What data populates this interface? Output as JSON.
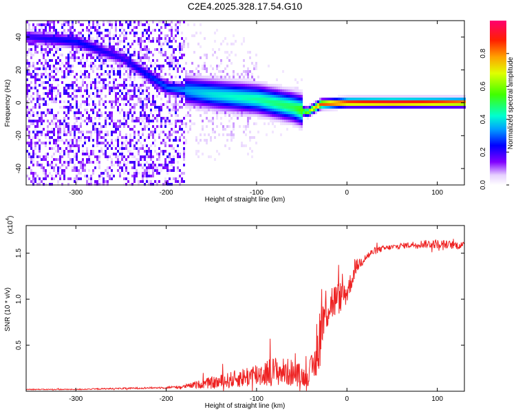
{
  "title": "C2E4.2025.328.17.54.G10",
  "chart_data": [
    {
      "type": "heatmap",
      "xlabel": "Height of straight line (km)",
      "ylabel": "Frequency (Hz)",
      "xlim": [
        -355,
        130
      ],
      "ylim": [
        -50,
        50
      ],
      "x_ticks": [
        -300,
        -200,
        -100,
        0,
        100
      ],
      "x_tick_labels": [
        "-300",
        "-200",
        "-100",
        "0",
        "100"
      ],
      "y_ticks": [
        -40,
        -20,
        0,
        20,
        40
      ],
      "y_tick_labels": [
        "-40",
        "-20",
        "0",
        "20",
        "40"
      ],
      "colorbar": {
        "label": "Normalized spectral amplitude",
        "range": [
          0,
          1
        ],
        "ticks": [
          0,
          0.2,
          0.4,
          0.6,
          0.8
        ],
        "tick_labels": [
          "0.0",
          "0.2",
          "0.4",
          "0.6",
          "0.8"
        ]
      },
      "ridge": {
        "description_points_x": [
          -355,
          -300,
          -250,
          -200,
          -150,
          -100,
          -60,
          -45,
          -30,
          0,
          50,
          100,
          130
        ],
        "center_freq": [
          41,
          38,
          28,
          10,
          6,
          3,
          -2,
          -5,
          0,
          1,
          1,
          1,
          1
        ],
        "peak_amplitude": [
          0.2,
          0.25,
          0.2,
          0.3,
          0.4,
          0.45,
          0.5,
          0.6,
          0.85,
          0.9,
          0.95,
          0.9,
          0.85
        ]
      },
      "grid": false
    },
    {
      "type": "line",
      "xlabel": "Height of straight line (km)",
      "ylabel": "SNR (10 * v/v)",
      "y_scale_note": "(x10",
      "y_scale_exp": "4",
      "xlim": [
        -355,
        130
      ],
      "ylim": [
        0,
        1.8
      ],
      "x_ticks": [
        -300,
        -200,
        -100,
        0,
        100
      ],
      "x_tick_labels": [
        "-300",
        "-200",
        "-100",
        "0",
        "100"
      ],
      "y_ticks": [
        0.5,
        1.0,
        1.5
      ],
      "y_tick_labels": [
        "0.5",
        "1.0",
        "1.5"
      ],
      "series": [
        {
          "color": "#ee2222",
          "x": [
            -355,
            -300,
            -250,
            -200,
            -180,
            -160,
            -140,
            -120,
            -100,
            -80,
            -60,
            -45,
            -35,
            -30,
            -25,
            -20,
            -10,
            0,
            5,
            10,
            20,
            30,
            40,
            60,
            80,
            100,
            130
          ],
          "y": [
            0.02,
            0.02,
            0.03,
            0.04,
            0.05,
            0.08,
            0.1,
            0.14,
            0.18,
            0.22,
            0.2,
            0.15,
            0.3,
            0.6,
            0.85,
            0.95,
            1.0,
            1.08,
            1.2,
            1.35,
            1.45,
            1.52,
            1.55,
            1.58,
            1.6,
            1.6,
            1.58
          ],
          "noise": [
            0.005,
            0.005,
            0.008,
            0.01,
            0.02,
            0.05,
            0.08,
            0.1,
            0.14,
            0.16,
            0.15,
            0.1,
            0.2,
            0.35,
            0.3,
            0.25,
            0.18,
            0.15,
            0.1,
            0.08,
            0.05,
            0.04,
            0.03,
            0.03,
            0.04,
            0.05,
            0.04
          ]
        }
      ],
      "grid": false
    }
  ]
}
